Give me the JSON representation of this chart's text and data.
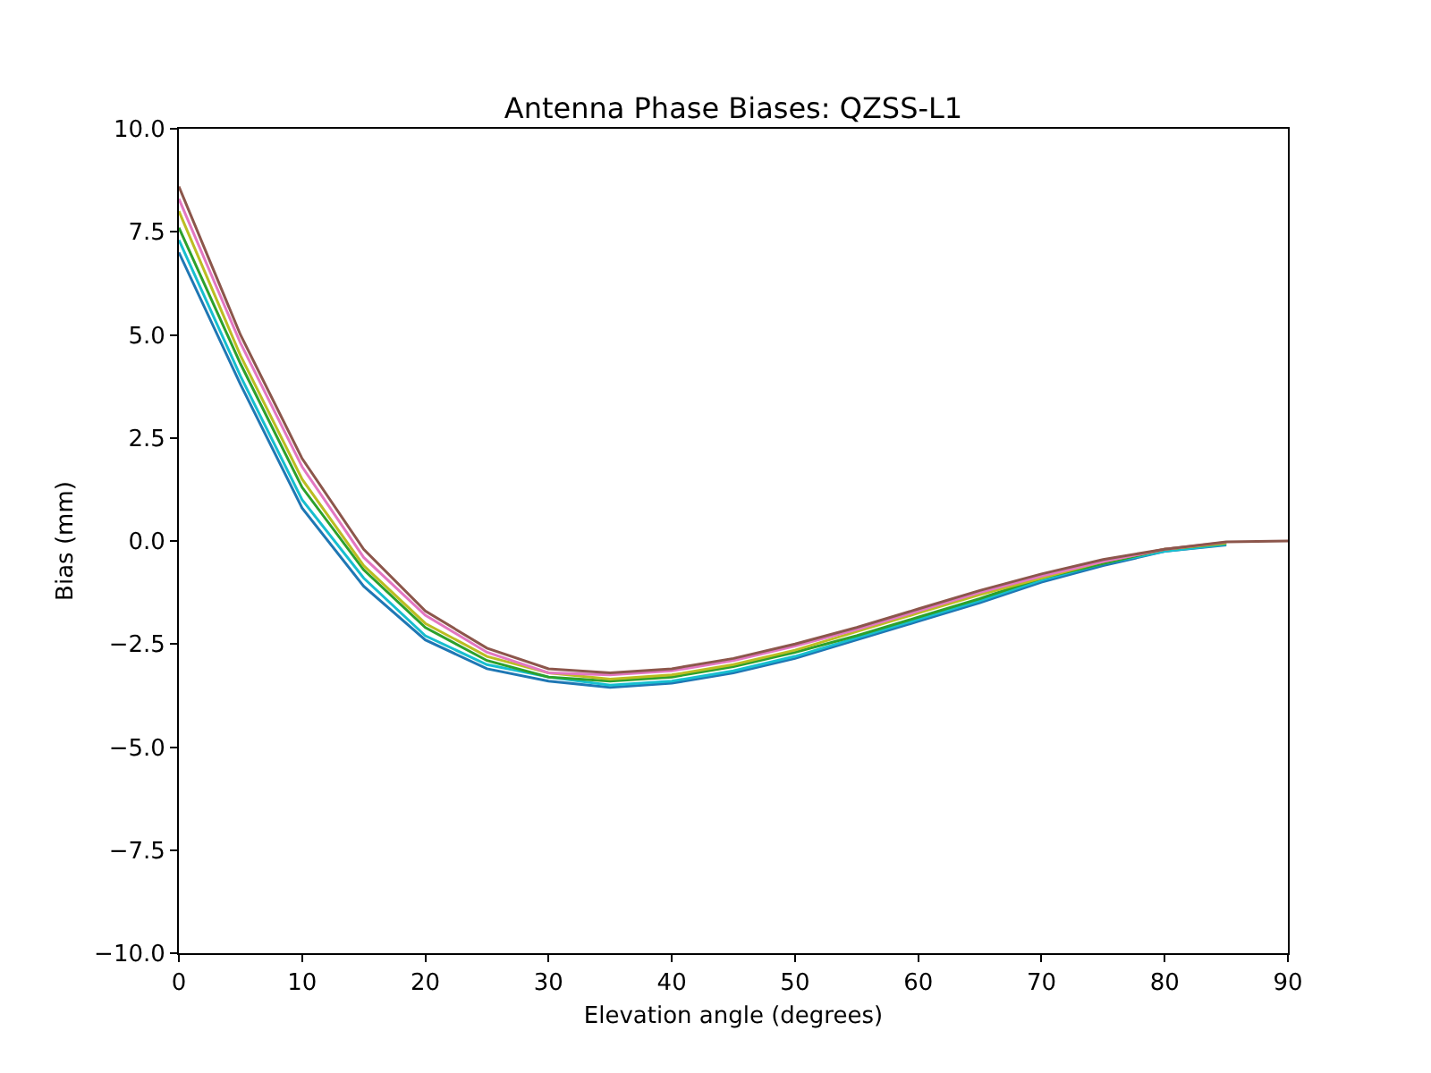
{
  "chart_data": {
    "type": "line",
    "title": "Antenna Phase Biases: QZSS-L1",
    "xlabel": "Elevation angle (degrees)",
    "ylabel": "Bias (mm)",
    "x": [
      0,
      5,
      10,
      15,
      20,
      25,
      30,
      35,
      40,
      45,
      50,
      55,
      60,
      65,
      70,
      75,
      80,
      85,
      90
    ],
    "series": [
      {
        "color": "#1f77b4",
        "values": [
          7.0,
          3.8,
          0.8,
          -1.1,
          -2.4,
          -3.1,
          -3.4,
          -3.55,
          -3.45,
          -3.2,
          -2.85,
          -2.4,
          -1.95,
          -1.5,
          -1.0,
          -0.6,
          -0.25,
          -0.1,
          null
        ]
      },
      {
        "color": "#17becf",
        "values": [
          7.3,
          4.0,
          1.0,
          -0.9,
          -2.3,
          -3.0,
          -3.3,
          -3.5,
          -3.4,
          -3.15,
          -2.8,
          -2.35,
          -1.9,
          -1.45,
          -0.95,
          -0.55,
          -0.25,
          -0.08,
          null
        ]
      },
      {
        "color": "#2ca02c",
        "values": [
          7.6,
          4.3,
          1.3,
          -0.7,
          -2.1,
          -2.9,
          -3.3,
          -3.4,
          -3.3,
          -3.05,
          -2.7,
          -2.3,
          -1.85,
          -1.4,
          -0.9,
          -0.55,
          -0.2,
          -0.06,
          null
        ]
      },
      {
        "color": "#bcbd22",
        "values": [
          8.0,
          4.5,
          1.5,
          -0.6,
          -2.0,
          -2.8,
          -3.2,
          -3.35,
          -3.25,
          -3.0,
          -2.65,
          -2.2,
          -1.75,
          -1.3,
          -0.9,
          -0.5,
          -0.2,
          -0.05,
          null
        ]
      },
      {
        "color": "#e377c2",
        "values": [
          8.3,
          4.8,
          1.8,
          -0.4,
          -1.8,
          -2.7,
          -3.2,
          -3.25,
          -3.15,
          -2.9,
          -2.55,
          -2.15,
          -1.7,
          -1.25,
          -0.85,
          -0.5,
          -0.2,
          -0.03,
          null
        ]
      },
      {
        "color": "#8c564b",
        "values": [
          8.6,
          5.0,
          2.0,
          -0.2,
          -1.7,
          -2.6,
          -3.1,
          -3.2,
          -3.1,
          -2.85,
          -2.5,
          -2.1,
          -1.65,
          -1.2,
          -0.8,
          -0.45,
          -0.2,
          -0.02,
          0
        ]
      }
    ],
    "xlim": [
      0,
      90
    ],
    "xticks": [
      0,
      10,
      20,
      30,
      40,
      50,
      60,
      70,
      80,
      90
    ],
    "ylim": [
      -10,
      10
    ],
    "yticks": [
      {
        "value": -10,
        "label": "−10.0"
      },
      {
        "value": -7.5,
        "label": "−7.5"
      },
      {
        "value": -5,
        "label": "−5.0"
      },
      {
        "value": -2.5,
        "label": "−2.5"
      },
      {
        "value": 0,
        "label": "0.0"
      },
      {
        "value": 2.5,
        "label": "2.5"
      },
      {
        "value": 5,
        "label": "5.0"
      },
      {
        "value": 7.5,
        "label": "7.5"
      },
      {
        "value": 10,
        "label": "10.0"
      }
    ],
    "marker": "none",
    "line_style": "solid"
  }
}
